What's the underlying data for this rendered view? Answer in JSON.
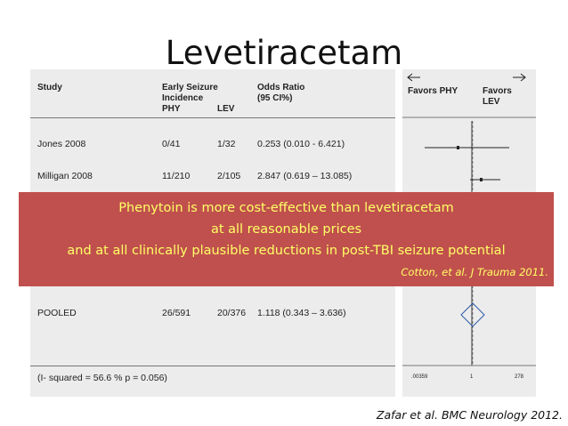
{
  "title": "Levetiracetam",
  "table": {
    "headers": {
      "study": "Study",
      "incidence": "Early Seizure\nIncidence",
      "phy": "PHY",
      "lev": "LEV",
      "odds_ratio": "Odds Ratio\n(95 CI%)",
      "favors_phy": "Favors PHY",
      "favors_lev": "Favors\nLEV"
    },
    "rows": [
      {
        "study": "Jones 2008",
        "phy": "0/41",
        "lev": "1/32",
        "or": "0.253 (0.010 - 6.421)"
      },
      {
        "study": "Milligan 2008",
        "phy": "11/210",
        "lev": "2/105",
        "or": "2.847 (0.619 – 13.085)"
      }
    ],
    "pooled": {
      "study": "POOLED",
      "phy": "26/591",
      "lev": "20/376",
      "or": "1.118 (0.343 – 3.636)"
    },
    "i_squared": "(I- squared = 56.6 % p = 0.056)",
    "axis_ticks": [
      ".00359",
      "1",
      "278"
    ]
  },
  "overlay": {
    "line1": "Phenytoin is more cost-effective than levetiracetam",
    "line2": "at all reasonable prices",
    "line3": "and at all clinically plausible reductions in post-TBI seizure potential",
    "citation": "Cotton, et al. J Trauma 2011."
  },
  "citation": "Zafar et al. BMC Neurology 2012.",
  "colors": {
    "overlay_bg": "#c0504d",
    "overlay_text": "#ffff66",
    "panel_bg": "#ececec"
  }
}
